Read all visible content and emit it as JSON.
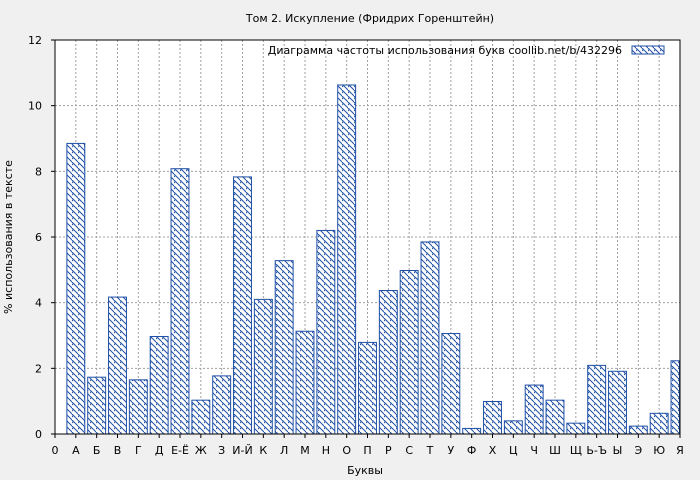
{
  "chart_data": {
    "type": "bar",
    "title": "Том 2. Искупление (Фридрих Горенштейн)",
    "xlabel": "Буквы",
    "ylabel": "% использования в тексте",
    "legend": "Диаграмма частоты использования букв  coollib.net/b/432296",
    "legend_position": "top-right",
    "grid": true,
    "ylim": [
      0,
      12
    ],
    "yticks": [
      0,
      2,
      4,
      6,
      8,
      10,
      12
    ],
    "xtick_labels": [
      "0",
      "А",
      "Б",
      "В",
      "Г",
      "Д",
      "Е-Ё",
      "Ж",
      "З",
      "И-Й",
      "К",
      "Л",
      "М",
      "Н",
      "О",
      "П",
      "Р",
      "С",
      "Т",
      "У",
      "Ф",
      "Х",
      "Ц",
      "Ч",
      "Ш",
      "Щ",
      "Ь-Ъ",
      "Ы",
      "Э",
      "Ю",
      "Я"
    ],
    "categories": [
      "А",
      "Б",
      "В",
      "Г",
      "Д",
      "Е-Ё",
      "Ж",
      "З",
      "И-Й",
      "К",
      "Л",
      "М",
      "Н",
      "О",
      "П",
      "Р",
      "С",
      "Т",
      "У",
      "Ф",
      "Х",
      "Ц",
      "Ч",
      "Ш",
      "Щ",
      "Ь-Ъ",
      "Ы",
      "Э",
      "Ю",
      "Я"
    ],
    "values": [
      8.85,
      1.73,
      4.17,
      1.65,
      2.97,
      8.08,
      1.03,
      1.77,
      7.83,
      4.1,
      5.28,
      3.13,
      6.2,
      10.63,
      2.79,
      4.37,
      4.98,
      5.85,
      3.06,
      0.17,
      0.99,
      0.4,
      1.49,
      1.03,
      0.33,
      2.09,
      1.91,
      0.24,
      0.63,
      2.23
    ],
    "colors": {
      "bar": "#1f4fa5",
      "background": "#f0f0f0",
      "grid": "#a0a0a0"
    }
  }
}
